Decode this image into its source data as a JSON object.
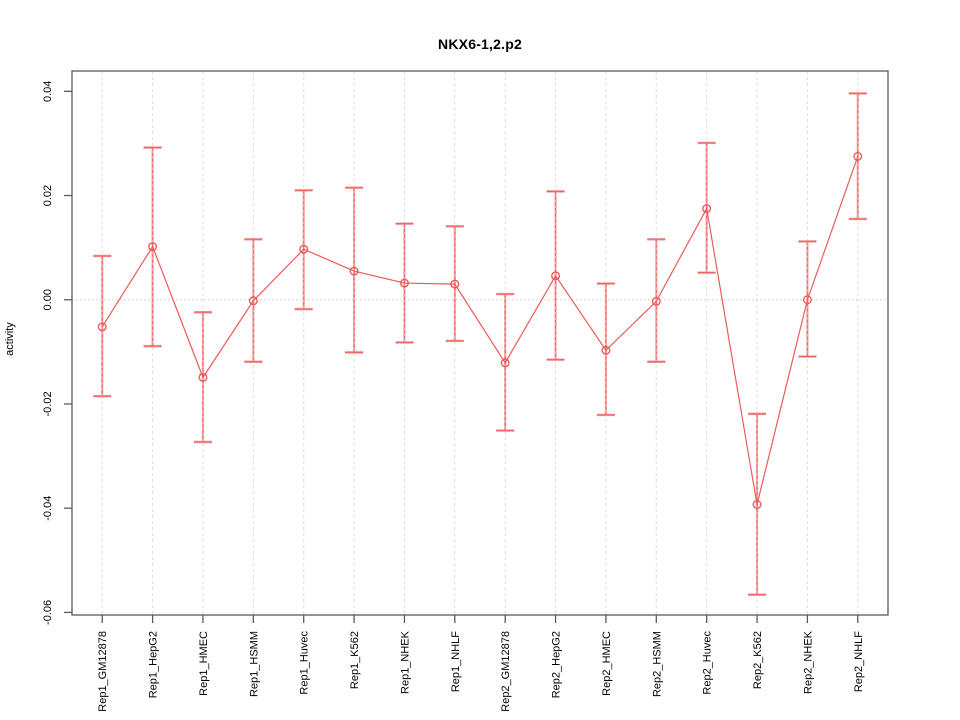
{
  "chart_data": {
    "type": "line",
    "title": "NKX6-1,2.p2",
    "xlabel": "",
    "ylabel": "activity",
    "categories": [
      "Rep1_GM12878",
      "Rep1_HepG2",
      "Rep1_HMEC",
      "Rep1_HSMM",
      "Rep1_Huvec",
      "Rep1_K562",
      "Rep1_NHEK",
      "Rep1_NHLF",
      "Rep2_GM12878",
      "Rep2_HepG2",
      "Rep2_HMEC",
      "Rep2_HSMM",
      "Rep2_Huvec",
      "Rep2_K562",
      "Rep2_NHEK",
      "Rep2_NHLF"
    ],
    "series": [
      {
        "name": "activity",
        "values": [
          -0.0052,
          0.0102,
          -0.0149,
          -0.0002,
          0.0097,
          0.0055,
          0.0032,
          0.003,
          -0.0121,
          0.0046,
          -0.0097,
          -0.0003,
          0.0175,
          -0.0393,
          0.0,
          0.0275
        ],
        "error_upper": [
          0.0084,
          0.0292,
          -0.0024,
          0.0116,
          0.021,
          0.0215,
          0.0146,
          0.0141,
          0.0011,
          0.0208,
          0.0031,
          0.0116,
          0.0301,
          -0.0219,
          0.0112,
          0.0396
        ],
        "error_lower": [
          -0.0185,
          -0.0089,
          -0.0273,
          -0.0119,
          -0.0018,
          -0.0101,
          -0.0082,
          -0.0079,
          -0.0251,
          -0.0115,
          -0.0221,
          -0.0119,
          0.0052,
          -0.0566,
          -0.0109,
          0.0155
        ]
      }
    ],
    "yticks": [
      0.04,
      0.02,
      0.0,
      -0.02,
      -0.04,
      -0.06
    ],
    "ylim": [
      -0.0605,
      0.0439
    ],
    "grid": {
      "vertical_per_category": true,
      "zero_line": true,
      "horizontal_ticks_only": true
    },
    "legend": "none",
    "marker": "open-circle",
    "colors": {
      "line": "#ee5a5a",
      "marker": "#ee5a5a",
      "error_bar": "#f3a6a6",
      "error_cap": "#f09898",
      "error_overlay": "#ef5959",
      "grid": "#dcdcdc",
      "zero_line": "#c8c8c8",
      "axis_box": "#595959",
      "tick": "#595959",
      "label": "#000000"
    }
  }
}
